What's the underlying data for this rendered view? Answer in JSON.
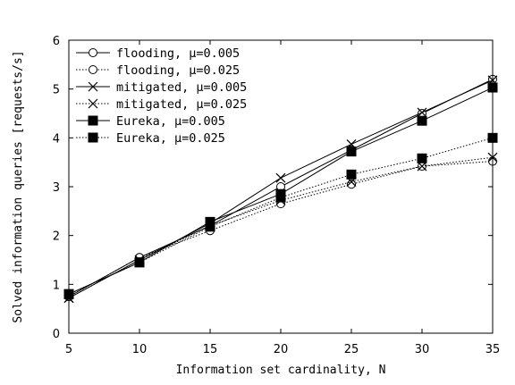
{
  "chart_data": {
    "type": "line",
    "title": "",
    "xlabel": "Information set cardinality, N",
    "ylabel": "Solved information queries [requests/s]",
    "x": [
      5,
      10,
      15,
      20,
      25,
      30,
      35
    ],
    "xlim": [
      5,
      35
    ],
    "ylim": [
      0,
      6
    ],
    "xticks": [
      5,
      10,
      15,
      20,
      25,
      30,
      35
    ],
    "yticks": [
      0,
      1,
      2,
      3,
      4,
      5,
      6
    ],
    "grid": false,
    "legend_position": "top-left",
    "series": [
      {
        "name": "flooding, μ=0.005",
        "marker": "circle",
        "dash": "solid",
        "values": [
          0.75,
          1.55,
          2.2,
          3.0,
          3.75,
          4.5,
          5.2
        ]
      },
      {
        "name": "flooding, μ=0.025",
        "marker": "circle",
        "dash": "dotted",
        "values": [
          0.75,
          1.55,
          2.1,
          2.65,
          3.05,
          3.42,
          3.52
        ]
      },
      {
        "name": "mitigated, μ=0.005",
        "marker": "x",
        "dash": "solid",
        "values": [
          0.72,
          1.5,
          2.25,
          3.18,
          3.87,
          4.52,
          5.18
        ]
      },
      {
        "name": "mitigated, μ=0.025",
        "marker": "x",
        "dash": "dotted",
        "values": [
          0.72,
          1.5,
          2.2,
          2.72,
          3.1,
          3.42,
          3.6
        ]
      },
      {
        "name": "Eureka, μ=0.005",
        "marker": "square",
        "dash": "solid",
        "values": [
          0.8,
          1.45,
          2.28,
          2.85,
          3.72,
          4.35,
          5.03
        ]
      },
      {
        "name": "Eureka, μ=0.025",
        "marker": "square",
        "dash": "dotted",
        "values": [
          0.8,
          1.45,
          2.18,
          2.78,
          3.25,
          3.58,
          4.0
        ]
      }
    ]
  }
}
